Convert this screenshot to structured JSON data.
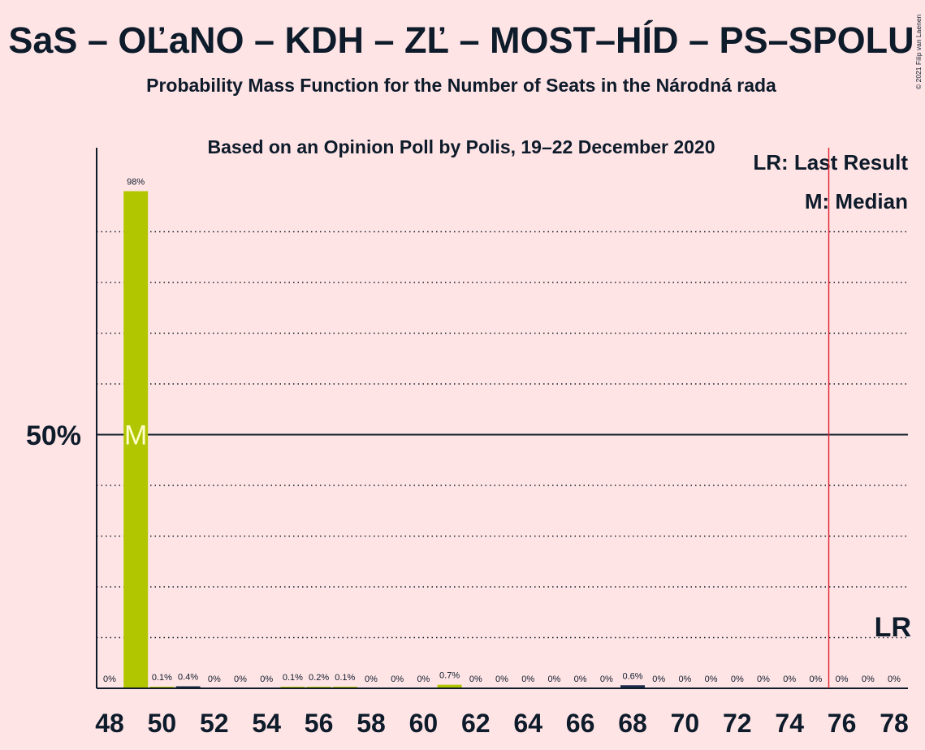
{
  "title": "SaS – OĽaNO – KDH – ZĽ – MOST–HÍD – PS–SPOLU",
  "subtitle1": "Probability Mass Function for the Number of Seats in the Národná rada",
  "subtitle2": "Based on an Opinion Poll by Polis, 19–22 December 2020",
  "copyright": "© 2021 Filip van Laenen",
  "legend": {
    "lr": "LR: Last Result",
    "m": "M: Median"
  },
  "colors": {
    "background": "#FFE4E6",
    "accent_bar": "#B2C600",
    "navy_bar": "#1B2A4A",
    "last_result_line": "#E0202A",
    "text": "#0D1B2A"
  },
  "chart_data": {
    "type": "bar",
    "x": [
      48,
      49,
      50,
      51,
      52,
      53,
      54,
      55,
      56,
      57,
      58,
      59,
      60,
      61,
      62,
      63,
      64,
      65,
      66,
      67,
      68,
      69,
      70,
      71,
      72,
      73,
      74,
      75,
      76,
      77,
      78
    ],
    "values": [
      0,
      98,
      0.1,
      0.4,
      0,
      0,
      0,
      0.1,
      0.2,
      0.1,
      0,
      0,
      0,
      0.7,
      0,
      0,
      0,
      0,
      0,
      0,
      0.6,
      0,
      0,
      0,
      0,
      0,
      0,
      0,
      0,
      0,
      0
    ],
    "labels": [
      "0%",
      "98%",
      "0.1%",
      "0.4%",
      "0%",
      "0%",
      "0%",
      "0.1%",
      "0.2%",
      "0.1%",
      "0%",
      "0%",
      "0%",
      "0.7%",
      "0%",
      "0%",
      "0%",
      "0%",
      "0%",
      "0%",
      "0.6%",
      "0%",
      "0%",
      "0%",
      "0%",
      "0%",
      "0%",
      "0%",
      "0%",
      "0%",
      "0%"
    ],
    "bar_colors": [
      "accent",
      "accent",
      "accent",
      "navy",
      "accent",
      "accent",
      "accent",
      "accent",
      "accent",
      "accent",
      "accent",
      "accent",
      "accent",
      "accent",
      "accent",
      "accent",
      "accent",
      "accent",
      "accent",
      "accent",
      "navy",
      "accent",
      "accent",
      "accent",
      "accent",
      "accent",
      "accent",
      "accent",
      "accent",
      "accent",
      "accent"
    ],
    "x_tick_labels": [
      "48",
      "50",
      "52",
      "54",
      "56",
      "58",
      "60",
      "62",
      "64",
      "66",
      "68",
      "70",
      "72",
      "74",
      "76",
      "78"
    ],
    "y_tick_label": "50%",
    "ylim": [
      0,
      100
    ],
    "gridlines": [
      10,
      20,
      30,
      40,
      60,
      70,
      80,
      90
    ],
    "reference_line": 50,
    "median": {
      "x": 49,
      "label": "M"
    },
    "last_result": {
      "x": 75.5,
      "label": "LR"
    }
  }
}
